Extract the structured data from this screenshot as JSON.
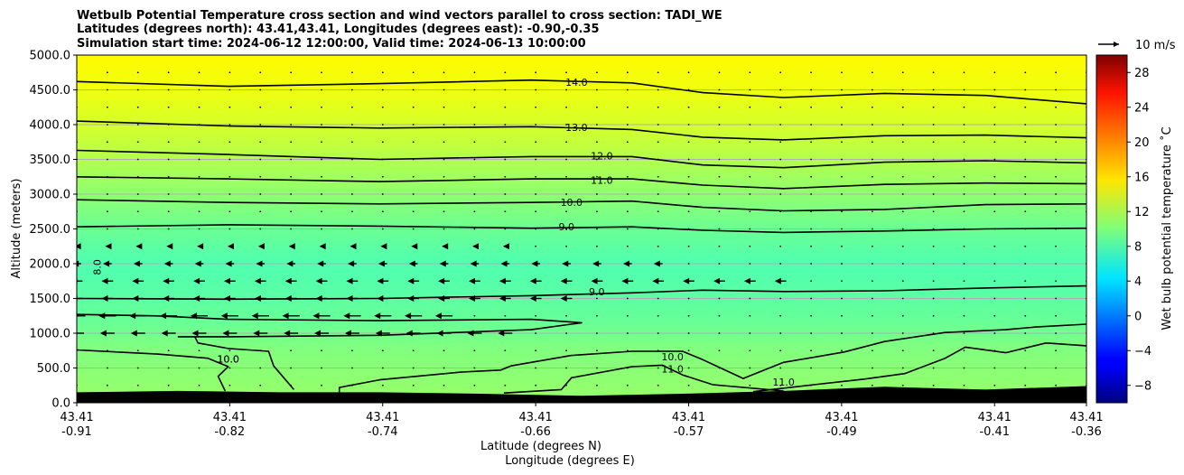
{
  "chart_data": {
    "type": "heatmap",
    "title_lines": [
      "Wetbulb Potential Temperature cross section and wind vectors parallel to cross section: TADI_WE",
      "Latitudes (degrees north): 43.41,43.41, Longitudes (degrees east): -0.90,-0.35",
      "Simulation start time: 2024-06-12 12:00:00, Valid time: 2024-06-13 10:00:00"
    ],
    "ylabel": "Altitude (meters)",
    "xlabel": "Latitude (degrees N)",
    "xlabel2": "Longitude (degrees E)",
    "ylim": [
      0,
      5000
    ],
    "xlim": [
      0,
      1
    ],
    "y_ticks": [
      0,
      500,
      1000,
      1500,
      2000,
      2500,
      3000,
      3500,
      4000,
      4500,
      5000
    ],
    "y_tick_labels": [
      "0.0",
      "500.0",
      "1000.0",
      "1500.0",
      "2000.0",
      "2500.0",
      "3000.0",
      "3500.0",
      "4000.0",
      "4500.0",
      "5000.0"
    ],
    "x_ticks": [
      0,
      0.1515,
      0.303,
      0.4545,
      0.606,
      0.7575,
      0.909,
      1.0
    ],
    "x_tick_labels": [
      [
        "43.41",
        "-0.91"
      ],
      [
        "43.41",
        "-0.82"
      ],
      [
        "43.41",
        "-0.74"
      ],
      [
        "43.41",
        "-0.66"
      ],
      [
        "43.41",
        "-0.57"
      ],
      [
        "43.41",
        "-0.49"
      ],
      [
        "43.41",
        "-0.41"
      ],
      [
        "43.41",
        "-0.36"
      ]
    ],
    "grid": true,
    "colorbar": {
      "label": "Wet bulb potential temperature ˚C",
      "range": [
        -10,
        30
      ],
      "ticks": [
        -8,
        -4,
        0,
        4,
        8,
        12,
        16,
        20,
        24,
        28
      ],
      "tick_labels": [
        "−8",
        "−4",
        "0",
        "4",
        "8",
        "12",
        "16",
        "20",
        "24",
        "28"
      ],
      "colormap": "jet"
    },
    "quiver_key": {
      "label": "10 m/s"
    },
    "color_field_rows": [
      {
        "alt": 0,
        "value": 11.0
      },
      {
        "alt": 800,
        "value": 10.0
      },
      {
        "alt": 1200,
        "value": 9.0
      },
      {
        "alt": 1600,
        "value": 8.5
      },
      {
        "alt": 2000,
        "value": 8.1
      },
      {
        "alt": 2500,
        "value": 9.2
      },
      {
        "alt": 3000,
        "value": 10.6
      },
      {
        "alt": 3500,
        "value": 12.0
      },
      {
        "alt": 4000,
        "value": 13.4
      },
      {
        "alt": 4500,
        "value": 14.4
      },
      {
        "alt": 5000,
        "value": 15.2
      }
    ],
    "contours": [
      {
        "level": "14.0",
        "points": [
          [
            0,
            4620
          ],
          [
            0.15,
            4550
          ],
          [
            0.3,
            4590
          ],
          [
            0.45,
            4640
          ],
          [
            0.55,
            4600
          ],
          [
            0.62,
            4460
          ],
          [
            0.7,
            4390
          ],
          [
            0.8,
            4450
          ],
          [
            0.9,
            4420
          ],
          [
            1,
            4300
          ]
        ],
        "label_at": [
          0.495,
          4610
        ]
      },
      {
        "level": "13.0",
        "points": [
          [
            0,
            4050
          ],
          [
            0.15,
            3980
          ],
          [
            0.3,
            3950
          ],
          [
            0.45,
            3970
          ],
          [
            0.55,
            3930
          ],
          [
            0.62,
            3820
          ],
          [
            0.7,
            3780
          ],
          [
            0.8,
            3840
          ],
          [
            0.9,
            3850
          ],
          [
            1,
            3810
          ]
        ],
        "label_at": [
          0.495,
          3960
        ]
      },
      {
        "level": "12.0",
        "points": [
          [
            0,
            3630
          ],
          [
            0.15,
            3570
          ],
          [
            0.3,
            3500
          ],
          [
            0.45,
            3540
          ],
          [
            0.55,
            3540
          ],
          [
            0.62,
            3420
          ],
          [
            0.7,
            3380
          ],
          [
            0.8,
            3460
          ],
          [
            0.9,
            3480
          ],
          [
            1,
            3450
          ]
        ],
        "label_at": [
          0.52,
          3550
        ]
      },
      {
        "level": "11.0",
        "points": [
          [
            0,
            3250
          ],
          [
            0.15,
            3220
          ],
          [
            0.3,
            3180
          ],
          [
            0.45,
            3220
          ],
          [
            0.55,
            3220
          ],
          [
            0.62,
            3130
          ],
          [
            0.7,
            3080
          ],
          [
            0.8,
            3140
          ],
          [
            0.9,
            3160
          ],
          [
            1,
            3150
          ]
        ],
        "label_at": [
          0.52,
          3200
        ]
      },
      {
        "level": "10.0",
        "points": [
          [
            0,
            2920
          ],
          [
            0.15,
            2880
          ],
          [
            0.3,
            2860
          ],
          [
            0.45,
            2880
          ],
          [
            0.55,
            2900
          ],
          [
            0.62,
            2810
          ],
          [
            0.7,
            2760
          ],
          [
            0.8,
            2780
          ],
          [
            0.9,
            2850
          ],
          [
            1,
            2860
          ]
        ],
        "label_at": [
          0.49,
          2880
        ]
      },
      {
        "level": "9.0",
        "points": [
          [
            0,
            2530
          ],
          [
            0.15,
            2560
          ],
          [
            0.3,
            2540
          ],
          [
            0.45,
            2510
          ],
          [
            0.55,
            2530
          ],
          [
            0.62,
            2480
          ],
          [
            0.7,
            2450
          ],
          [
            0.8,
            2470
          ],
          [
            0.9,
            2500
          ],
          [
            1,
            2510
          ]
        ],
        "label_at": [
          0.485,
          2530
        ]
      },
      {
        "level": "9.0",
        "points": [
          [
            0,
            1500
          ],
          [
            0.15,
            1490
          ],
          [
            0.3,
            1500
          ],
          [
            0.45,
            1540
          ],
          [
            0.55,
            1580
          ],
          [
            0.62,
            1620
          ],
          [
            0.7,
            1600
          ],
          [
            0.8,
            1610
          ],
          [
            0.9,
            1650
          ],
          [
            1,
            1680
          ]
        ],
        "label_at": [
          0.515,
          1600
        ]
      },
      {
        "level": "10.0",
        "points": [
          [
            0,
            1270
          ],
          [
            0.08,
            1250
          ],
          [
            0.15,
            1200
          ],
          [
            0.3,
            1180
          ],
          [
            0.45,
            1200
          ],
          [
            0.5,
            1150
          ],
          [
            0.45,
            1050
          ],
          [
            0.3,
            970
          ],
          [
            0.15,
            950
          ],
          [
            0.1,
            950
          ]
        ],
        "label_at": [
          0.0,
          0
        ]
      },
      {
        "level": "10.0",
        "points": [
          [
            0,
            760
          ],
          [
            0.08,
            700
          ],
          [
            0.13,
            640
          ],
          [
            0.15,
            520
          ],
          [
            0.14,
            380
          ],
          [
            0.147,
            170
          ]
        ],
        "label_at": [
          0.15,
          630
        ]
      },
      {
        "level": "10.0",
        "points": [
          [
            0.117,
            950
          ],
          [
            0.12,
            860
          ],
          [
            0.15,
            780
          ],
          [
            0.19,
            740
          ],
          [
            0.195,
            530
          ],
          [
            0.215,
            190
          ]
        ],
        "label_at": [
          0.15,
          630
        ]
      },
      {
        "level": "10.0",
        "points": [
          [
            0.26,
            150
          ],
          [
            0.26,
            220
          ],
          [
            0.3,
            330
          ],
          [
            0.38,
            440
          ],
          [
            0.42,
            470
          ],
          [
            0.43,
            530
          ],
          [
            0.49,
            680
          ],
          [
            0.55,
            740
          ],
          [
            0.6,
            740
          ],
          [
            0.62,
            620
          ],
          [
            0.66,
            350
          ],
          [
            0.7,
            580
          ],
          [
            0.76,
            730
          ],
          [
            0.8,
            880
          ],
          [
            0.86,
            1010
          ],
          [
            0.92,
            1050
          ],
          [
            0.95,
            1090
          ],
          [
            1,
            1130
          ]
        ],
        "label_at": [
          0.59,
          660
        ]
      },
      {
        "level": "11.0",
        "points": [
          [
            0.423,
            140
          ],
          [
            0.48,
            190
          ],
          [
            0.49,
            360
          ],
          [
            0.55,
            520
          ],
          [
            0.58,
            540
          ],
          [
            0.6,
            400
          ],
          [
            0.63,
            260
          ],
          [
            0.7,
            170
          ]
        ],
        "label_at": [
          0.59,
          490
        ]
      },
      {
        "level": "11.0",
        "points": [
          [
            0.67,
            160
          ],
          [
            0.73,
            260
          ],
          [
            0.78,
            340
          ],
          [
            0.82,
            420
          ],
          [
            0.86,
            640
          ],
          [
            0.88,
            800
          ],
          [
            0.92,
            720
          ],
          [
            0.96,
            860
          ],
          [
            1,
            820
          ]
        ],
        "label_at": [
          0.7,
          300
        ]
      }
    ],
    "terrain": [
      [
        0,
        150
      ],
      [
        0.1,
        170
      ],
      [
        0.2,
        150
      ],
      [
        0.3,
        150
      ],
      [
        0.4,
        130
      ],
      [
        0.5,
        100
      ],
      [
        0.6,
        130
      ],
      [
        0.7,
        170
      ],
      [
        0.8,
        230
      ],
      [
        0.9,
        190
      ],
      [
        1,
        240
      ]
    ],
    "wind_arrows": [
      {
        "alt": 1000,
        "x_from": 0.0,
        "x_to": 0.44,
        "u": -1.0
      },
      {
        "alt": 1250,
        "x_from": 0.0,
        "x_to": 0.38,
        "u": -1.2
      },
      {
        "alt": 1500,
        "x_from": 0.0,
        "x_to": 0.5,
        "u": -0.8
      },
      {
        "alt": 1750,
        "x_from": 0.0,
        "x_to": 0.7,
        "u": -0.8
      },
      {
        "alt": 2000,
        "x_from": 0.0,
        "x_to": 0.6,
        "u": -0.6
      },
      {
        "alt": 2250,
        "x_from": 0.0,
        "x_to": 0.45,
        "u": -0.3
      }
    ]
  }
}
